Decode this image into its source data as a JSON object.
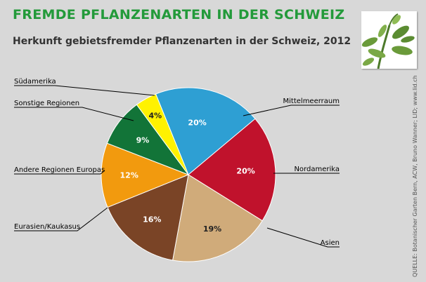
{
  "header": {
    "title": "FREMDE PFLANZENARTEN IN DER SCHWEIZ",
    "subtitle": "Herkunft gebietsfremder Pflanzenarten in der Schweiz, 2012"
  },
  "source": "QUELLE: Botanischer Garten Bern, ACW, Bruno Wanner; LID; www.lid.ch",
  "chart_data": {
    "type": "pie",
    "title": "Herkunft gebietsfremder Pflanzenarten in der Schweiz, 2012",
    "slices": [
      {
        "label": "Mittelmeerraum",
        "value": 20,
        "display": "20%",
        "color": "#2e9fd3"
      },
      {
        "label": "Nordamerika",
        "value": 20,
        "display": "20%",
        "color": "#c0122c"
      },
      {
        "label": "Asien",
        "value": 19,
        "display": "19%",
        "color": "#d0ab7a"
      },
      {
        "label": "Eurasien/Kaukasus",
        "value": 16,
        "display": "16%",
        "color": "#7a4426"
      },
      {
        "label": "Andere Regionen Europas",
        "value": 12,
        "display": "12%",
        "color": "#f29a0e"
      },
      {
        "label": "Sonstige Regionen",
        "value": 9,
        "display": "9%",
        "color": "#127438"
      },
      {
        "label": "Südamerika",
        "value": 4,
        "display": "4%",
        "color": "#fff200"
      }
    ]
  }
}
